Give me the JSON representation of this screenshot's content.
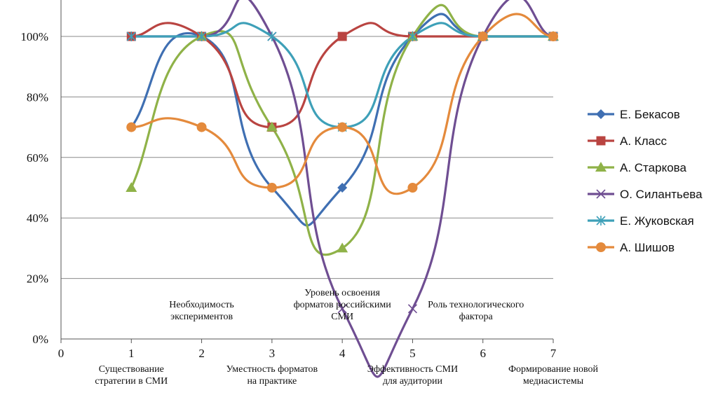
{
  "chart_data": {
    "type": "line",
    "smooth": true,
    "x": [
      1,
      2,
      3,
      4,
      5,
      6,
      7
    ],
    "xlim": [
      0,
      7
    ],
    "x_ticks": [
      "0",
      "1",
      "2",
      "3",
      "4",
      "5",
      "6",
      "7"
    ],
    "ylim": [
      0,
      100
    ],
    "y_ticks": [
      "0%",
      "20%",
      "40%",
      "60%",
      "80%",
      "100%"
    ],
    "grid": "horizontal",
    "legend": "right",
    "category_labels": [
      {
        "x": 1,
        "position": "below",
        "lines": [
          "Существование",
          "стратегии  в СМИ"
        ]
      },
      {
        "x": 2,
        "position": "above",
        "lines": [
          "Необходимость",
          "экспериментов"
        ]
      },
      {
        "x": 3,
        "position": "below",
        "lines": [
          "Уместность  форматов",
          "на практике"
        ]
      },
      {
        "x": 4,
        "position": "above",
        "lines": [
          "Уровень освоения",
          "форматов российскими",
          "СМИ"
        ]
      },
      {
        "x": 5,
        "position": "below",
        "lines": [
          "Эффективность  СМИ",
          "для аудитории"
        ]
      },
      {
        "x": 5.9,
        "position": "above",
        "lines": [
          "Роль технологического",
          "фактора"
        ]
      },
      {
        "x": 7,
        "position": "below",
        "lines": [
          "Формирование  новой",
          "медиасистемы"
        ]
      }
    ],
    "series": [
      {
        "name": "Е. Бекасов",
        "color": "#3f6fb2",
        "marker": "diamond",
        "values": [
          70,
          100,
          50,
          50,
          100,
          100,
          100
        ]
      },
      {
        "name": "А. Класс",
        "color": "#b94441",
        "marker": "square",
        "values": [
          100,
          100,
          70,
          100,
          100,
          100,
          100
        ]
      },
      {
        "name": "А. Старкова",
        "color": "#8fb248",
        "marker": "triangle",
        "values": [
          50,
          100,
          70,
          30,
          100,
          100,
          100
        ]
      },
      {
        "name": "О. Силантьева",
        "color": "#6f4e92",
        "marker": "x",
        "values": [
          100,
          100,
          100,
          10,
          10,
          100,
          100
        ]
      },
      {
        "name": "Е. Жуковская",
        "color": "#3ea0b8",
        "marker": "star",
        "values": [
          100,
          100,
          100,
          70,
          100,
          100,
          100
        ]
      },
      {
        "name": "А. Шишов",
        "color": "#e48a3c",
        "marker": "circle",
        "values": [
          70,
          70,
          50,
          70,
          50,
          100,
          100
        ]
      }
    ]
  }
}
